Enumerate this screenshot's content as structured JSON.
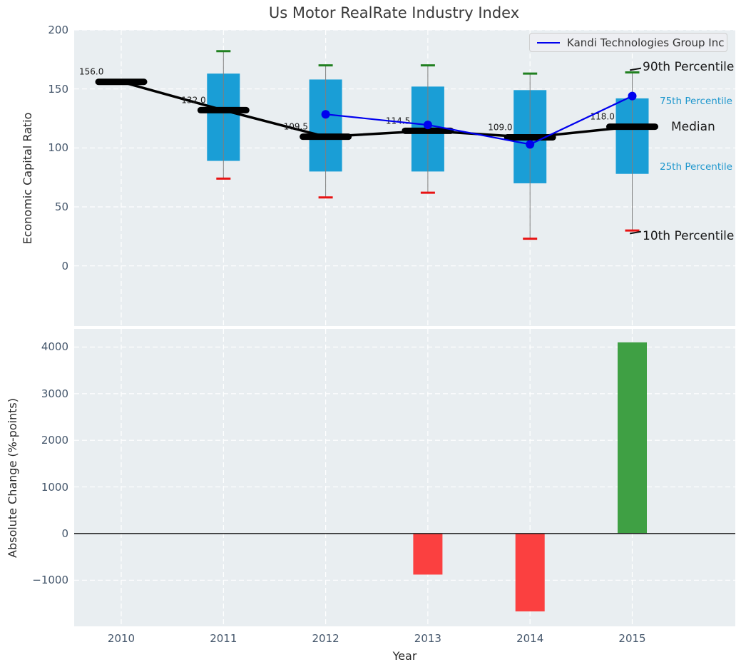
{
  "title": "Us Motor RealRate Industry Index",
  "legend": {
    "series_label": "Kandi Technologies Group Inc"
  },
  "percentile_labels": {
    "p90": "90th Percentile",
    "p75": "75th Percentile",
    "median": "Median",
    "p25": "25th Percentile",
    "p10": "10th Percentile"
  },
  "colors": {
    "box_fill": "#1a9ed6",
    "median_line": "#000000",
    "whisker": "#7f7f7f",
    "cap_high": "#208020",
    "cap_low": "#e81212",
    "kandi_line": "#0000ee",
    "bar_negative": "#fb4040",
    "bar_positive": "#3fa044",
    "plot_bg": "#e9eef1",
    "grid": "#ffffff",
    "tick_text": "#44566b",
    "annotation_black": "#1a1a1a",
    "annotation_cyan": "#1f97cd"
  },
  "chart_data": [
    {
      "type": "boxplot",
      "title": "Us Motor RealRate Industry Index",
      "xlabel": "Year",
      "ylabel": "Economic Capital Ratio",
      "categories": [
        "2010",
        "2011",
        "2012",
        "2013",
        "2014",
        "2015"
      ],
      "ylim": [
        -51,
        200
      ],
      "yticks": {
        "values": [
          200,
          150,
          100,
          50,
          0
        ],
        "labels": [
          "200",
          "150",
          "100",
          "50",
          "0"
        ]
      },
      "grid": true,
      "legend_position": "upper right",
      "boxes": [
        {
          "year": "2010",
          "p10": null,
          "p25": null,
          "median": 156.0,
          "p75": null,
          "p90": null,
          "label": "156.0"
        },
        {
          "year": "2011",
          "p10": 74,
          "p25": 89,
          "median": 132.0,
          "p75": 163,
          "p90": 182,
          "label": "132.0"
        },
        {
          "year": "2012",
          "p10": 58,
          "p25": 80,
          "median": 109.5,
          "p75": 158,
          "p90": 170,
          "label": "109.5"
        },
        {
          "year": "2013",
          "p10": 62,
          "p25": 80,
          "median": 114.5,
          "p75": 152,
          "p90": 170,
          "label": "114.5"
        },
        {
          "year": "2014",
          "p10": 23,
          "p25": 70,
          "median": 109.0,
          "p75": 149,
          "p90": 163,
          "label": "109.0"
        },
        {
          "year": "2015",
          "p10": 30,
          "p25": 78,
          "median": 118.0,
          "p75": 142,
          "p90": 164,
          "label": "118.0"
        }
      ],
      "series": [
        {
          "name": "Kandi Technologies Group Inc",
          "x": [
            "2012",
            "2013",
            "2014",
            "2015"
          ],
          "values": [
            128.5,
            119.5,
            103.0,
            144.0
          ]
        }
      ]
    },
    {
      "type": "bar",
      "xlabel": "Year",
      "ylabel": "Absolute Change (%-points)",
      "categories": [
        "2010",
        "2011",
        "2012",
        "2013",
        "2014",
        "2015"
      ],
      "values": [
        null,
        null,
        null,
        -880,
        -1670,
        4100
      ],
      "ylim": [
        -1990,
        4390
      ],
      "yticks": {
        "values": [
          4000,
          3000,
          2000,
          1000,
          0,
          -1000
        ],
        "labels": [
          "4000",
          "3000",
          "2000",
          "1000",
          "0",
          "−1000"
        ]
      },
      "zero_line": 0,
      "grid": true
    }
  ]
}
